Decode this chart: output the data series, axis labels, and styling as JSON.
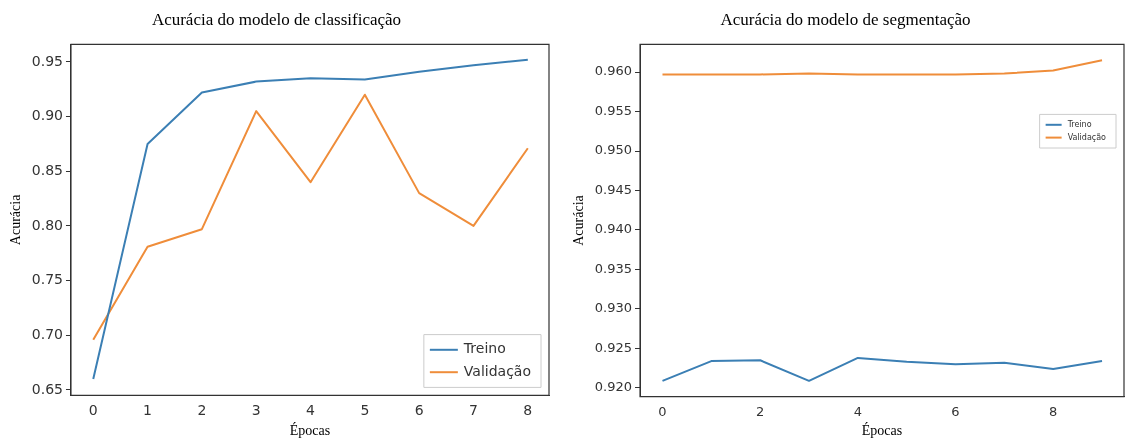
{
  "chart_data": [
    {
      "type": "line",
      "title": "Acurácia do modelo de classificação",
      "xlabel": "Épocas",
      "ylabel": "Acurácia",
      "x": [
        0,
        1,
        2,
        3,
        4,
        5,
        6,
        7,
        8
      ],
      "series": [
        {
          "name": "Treino",
          "color": "#3b7fb4",
          "values": [
            0.66,
            0.875,
            0.922,
            0.932,
            0.935,
            0.934,
            0.941,
            0.947,
            0.952
          ]
        },
        {
          "name": "Validação",
          "color": "#ef8d3a",
          "values": [
            0.696,
            0.781,
            0.797,
            0.905,
            0.84,
            0.92,
            0.83,
            0.8,
            0.871
          ]
        }
      ],
      "xlim": [
        -0.41,
        8.39
      ],
      "xticks": [
        0,
        1,
        2,
        3,
        4,
        5,
        6,
        7,
        8
      ],
      "ylim": [
        0.645,
        0.966
      ],
      "yticks": [
        {
          "value": 0.65,
          "label": "0.65"
        },
        {
          "value": 0.7,
          "label": "0.70"
        },
        {
          "value": 0.75,
          "label": "0.75"
        },
        {
          "value": 0.8,
          "label": "0.80"
        },
        {
          "value": 0.85,
          "label": "0.85"
        },
        {
          "value": 0.9,
          "label": "0.90"
        },
        {
          "value": 0.95,
          "label": "0.95"
        }
      ],
      "grid": false,
      "legend": "bottom right",
      "marker": "none",
      "line_style": "solid"
    },
    {
      "type": "line",
      "title": "Acurácia do modelo de segmentação",
      "xlabel": "Épocas",
      "ylabel": "Acurácia",
      "x": [
        0,
        1,
        2,
        3,
        4,
        5,
        6,
        7,
        8,
        9
      ],
      "series": [
        {
          "name": "Treino",
          "color": "#3b7fb4",
          "values": [
            0.9209,
            0.9234,
            0.9235,
            0.9209,
            0.9238,
            0.9233,
            0.923,
            0.9232,
            0.9224,
            0.9234
          ]
        },
        {
          "name": "Validação",
          "color": "#ef8d3a",
          "values": [
            0.9597,
            0.9597,
            0.9597,
            0.9598,
            0.9597,
            0.9597,
            0.9597,
            0.9598,
            0.9602,
            0.9615
          ]
        }
      ],
      "xlim": [
        -0.46,
        9.45
      ],
      "xticks": [
        0,
        2,
        4,
        6,
        8
      ],
      "ylim": [
        0.9189,
        0.9635
      ],
      "yticks": [
        {
          "value": 0.92,
          "label": "0.920"
        },
        0.925,
        {
          "value": 0.93,
          "label": "0.930"
        },
        0.935,
        {
          "value": 0.94,
          "label": "0.940"
        },
        0.945,
        {
          "value": 0.95,
          "label": "0.950"
        },
        0.955,
        {
          "value": 0.96,
          "label": "0.960"
        }
      ],
      "grid": false,
      "legend": "top right",
      "marker": "none",
      "line_style": "solid"
    }
  ]
}
